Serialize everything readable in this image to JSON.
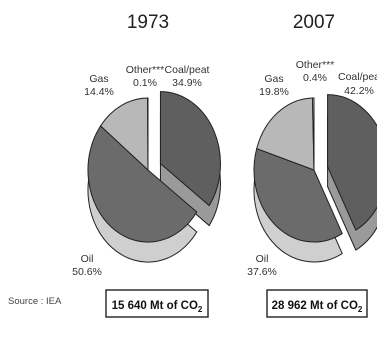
{
  "chart_data": [
    {
      "type": "pie",
      "title": "1973",
      "slices": [
        {
          "name": "Coal/peat",
          "value": 34.9,
          "label_name": "Coal/peat",
          "label_value": "34.9%"
        },
        {
          "name": "Oil",
          "value": 50.6,
          "label_name": "Oil",
          "label_value": "50.6%"
        },
        {
          "name": "Gas",
          "value": 14.4,
          "label_name": "Gas",
          "label_value": "14.4%"
        },
        {
          "name": "Other***",
          "value": 0.1,
          "label_name": "Other***",
          "label_value": "0.1%"
        }
      ],
      "exploded": [
        "Coal/peat"
      ],
      "total": {
        "prefix": "15 640 Mt of CO",
        "sub": "2"
      }
    },
    {
      "type": "pie",
      "title": "2007",
      "slices": [
        {
          "name": "Coal/peat",
          "value": 42.2,
          "label_name": "Coal/pea",
          "label_value": "42.2%"
        },
        {
          "name": "Oil",
          "value": 37.6,
          "label_name": "Oil",
          "label_value": "37.6%"
        },
        {
          "name": "Gas",
          "value": 19.8,
          "label_name": "Gas",
          "label_value": "19.8%"
        },
        {
          "name": "Other***",
          "value": 0.4,
          "label_name": "Other***",
          "label_value": "0.4%"
        }
      ],
      "exploded": [
        "Coal/peat"
      ],
      "total": {
        "prefix": "28 962 Mt of CO",
        "sub": "2"
      }
    }
  ],
  "source": "Source : IEA",
  "colors": {
    "Coal/peat": "#5f5f5f",
    "Oil": "#6b6b6b",
    "Gas": "#b8b8b8",
    "Other***": "#d8d8d8",
    "side_dark": "#9a9a9a",
    "side_light": "#cfcfcf",
    "edge": "#222222"
  }
}
